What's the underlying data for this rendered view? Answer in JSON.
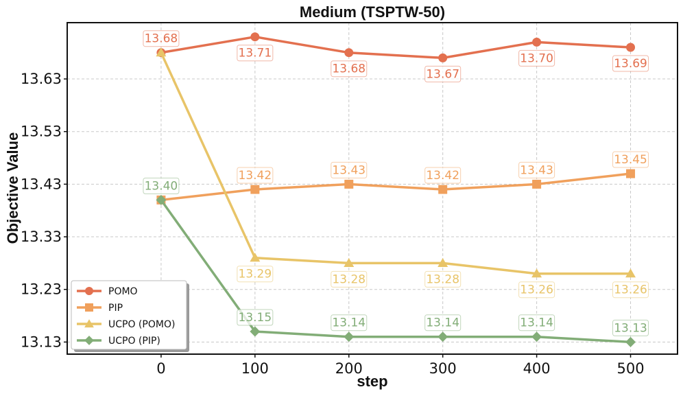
{
  "chart_data": {
    "type": "line",
    "title": "Medium (TSPTW-50)",
    "xlabel": "step",
    "ylabel": "Objective Value",
    "x": [
      0,
      100,
      200,
      300,
      400,
      500
    ],
    "x_ticks": [
      "0",
      "100",
      "200",
      "300",
      "400",
      "500"
    ],
    "y_ticks": [
      "13.13",
      "13.23",
      "13.33",
      "13.43",
      "13.53",
      "13.63"
    ],
    "xlim": [
      -100,
      550
    ],
    "ylim": [
      13.107,
      13.737
    ],
    "grid": true,
    "legend_position": "lower-left",
    "series": [
      {
        "name": "POMO",
        "color": "#e3704f",
        "marker": "circle",
        "values": [
          13.68,
          13.71,
          13.68,
          13.67,
          13.7,
          13.69
        ],
        "labels": [
          "13.68",
          "13.71",
          "13.68",
          "13.67",
          "13.70",
          "13.69"
        ],
        "label_side": [
          "above",
          "below",
          "below",
          "below",
          "below",
          "below"
        ]
      },
      {
        "name": "PIP",
        "color": "#f0a05c",
        "marker": "square",
        "values": [
          13.4,
          13.42,
          13.43,
          13.42,
          13.43,
          13.45
        ],
        "labels": [
          "",
          "13.42",
          "13.43",
          "13.42",
          "13.43",
          "13.45"
        ],
        "label_side": [
          "above",
          "above",
          "above",
          "above",
          "above",
          "above"
        ]
      },
      {
        "name": "UCPO (POMO)",
        "color": "#e8c468",
        "marker": "triangle",
        "values": [
          13.68,
          13.29,
          13.28,
          13.28,
          13.26,
          13.26
        ],
        "labels": [
          "",
          "13.29",
          "13.28",
          "13.28",
          "13.26",
          "13.26"
        ],
        "label_side": [
          "above",
          "below",
          "below",
          "below",
          "below",
          "below"
        ]
      },
      {
        "name": "UCPO (PIP)",
        "color": "#82ad77",
        "marker": "diamond",
        "values": [
          13.4,
          13.15,
          13.14,
          13.14,
          13.14,
          13.13
        ],
        "labels": [
          "13.40",
          "13.15",
          "13.14",
          "13.14",
          "13.14",
          "13.13"
        ],
        "label_side": [
          "above",
          "above",
          "above",
          "above",
          "above",
          "above"
        ]
      }
    ]
  }
}
